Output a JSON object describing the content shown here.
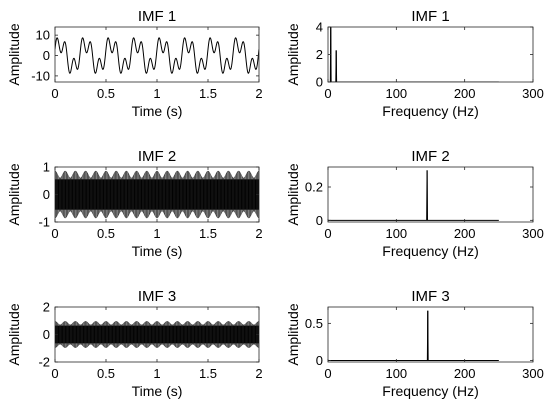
{
  "chart_data": [
    {
      "type": "line",
      "title": "IMF 1",
      "xlabel": "Time (s)",
      "ylabel": "Amplitude",
      "xlim": [
        0,
        2
      ],
      "ylim": [
        -13,
        14
      ],
      "xticks": [
        "0",
        "0.5",
        "1",
        "1.5",
        "2"
      ],
      "xtick_values": [
        0,
        0.5,
        1,
        1.5,
        2
      ],
      "yticks": [
        "-10",
        "0",
        "10"
      ],
      "ytick_values": [
        -10,
        0,
        10
      ],
      "signal": {
        "components": [
          {
            "amplitude": 6,
            "frequency_hz": 4
          },
          {
            "amplitude": 4.5,
            "frequency_hz": 12
          }
        ]
      },
      "color": "#000000"
    },
    {
      "type": "line",
      "title": "IMF 1",
      "xlabel": "Frequency (Hz)",
      "ylabel": "Amplitude",
      "xlim": [
        0,
        300
      ],
      "ylim": [
        0,
        4
      ],
      "xticks": [
        "0",
        "100",
        "200",
        "300"
      ],
      "xtick_values": [
        0,
        100,
        200,
        300
      ],
      "yticks": [
        "0",
        "2",
        "4"
      ],
      "ytick_values": [
        0,
        2,
        4
      ],
      "x_max_data": 250,
      "peaks": [
        {
          "x": 4,
          "y": 4.0
        },
        {
          "x": 12,
          "y": 2.3
        }
      ],
      "color": "#000000"
    },
    {
      "type": "line",
      "title": "IMF 2",
      "xlabel": "Time (s)",
      "ylabel": "Amplitude",
      "xlim": [
        0,
        2
      ],
      "ylim": [
        -1,
        1
      ],
      "xticks": [
        "0",
        "0.5",
        "1",
        "1.5",
        "2"
      ],
      "xtick_values": [
        0,
        0.5,
        1,
        1.5,
        2
      ],
      "yticks": [
        "-1",
        "0",
        "1"
      ],
      "ytick_values": [
        -1,
        0,
        1
      ],
      "signal": {
        "carrier_hz": 145,
        "envelope_max": 0.85,
        "envelope_min": 0.6,
        "beats": 20
      },
      "color": "#000000"
    },
    {
      "type": "line",
      "title": "IMF 2",
      "xlabel": "Frequency (Hz)",
      "ylabel": "Amplitude",
      "xlim": [
        0,
        300
      ],
      "ylim": [
        -0.01,
        0.32
      ],
      "xticks": [
        "0",
        "100",
        "200",
        "300"
      ],
      "xtick_values": [
        0,
        100,
        200,
        300
      ],
      "yticks": [
        "0",
        "0.2"
      ],
      "ytick_values": [
        0,
        0.2
      ],
      "x_max_data": 250,
      "peaks": [
        {
          "x": 145,
          "y": 0.3
        }
      ],
      "color": "#000000"
    },
    {
      "type": "line",
      "title": "IMF 3",
      "xlabel": "Time (s)",
      "ylabel": "Amplitude",
      "xlim": [
        0,
        2
      ],
      "ylim": [
        -2,
        2
      ],
      "xticks": [
        "0",
        "0.5",
        "1",
        "1.5",
        "2"
      ],
      "xtick_values": [
        0,
        0.5,
        1,
        1.5,
        2
      ],
      "yticks": [
        "-2",
        "0",
        "2"
      ],
      "ytick_values": [
        -2,
        0,
        2
      ],
      "signal": {
        "carrier_hz": 147,
        "envelope_max": 0.95,
        "envelope_min": 0.7,
        "beats": 20
      },
      "color": "#000000"
    },
    {
      "type": "line",
      "title": "IMF 3",
      "xlabel": "Frequency (Hz)",
      "ylabel": "Amplitude",
      "xlim": [
        0,
        300
      ],
      "ylim": [
        -0.02,
        0.72
      ],
      "xticks": [
        "0",
        "100",
        "200",
        "300"
      ],
      "xtick_values": [
        0,
        100,
        200,
        300
      ],
      "yticks": [
        "0",
        "0.5"
      ],
      "ytick_values": [
        0,
        0.5
      ],
      "x_max_data": 250,
      "peaks": [
        {
          "x": 146,
          "y": 0.67
        }
      ],
      "color": "#000000"
    }
  ]
}
